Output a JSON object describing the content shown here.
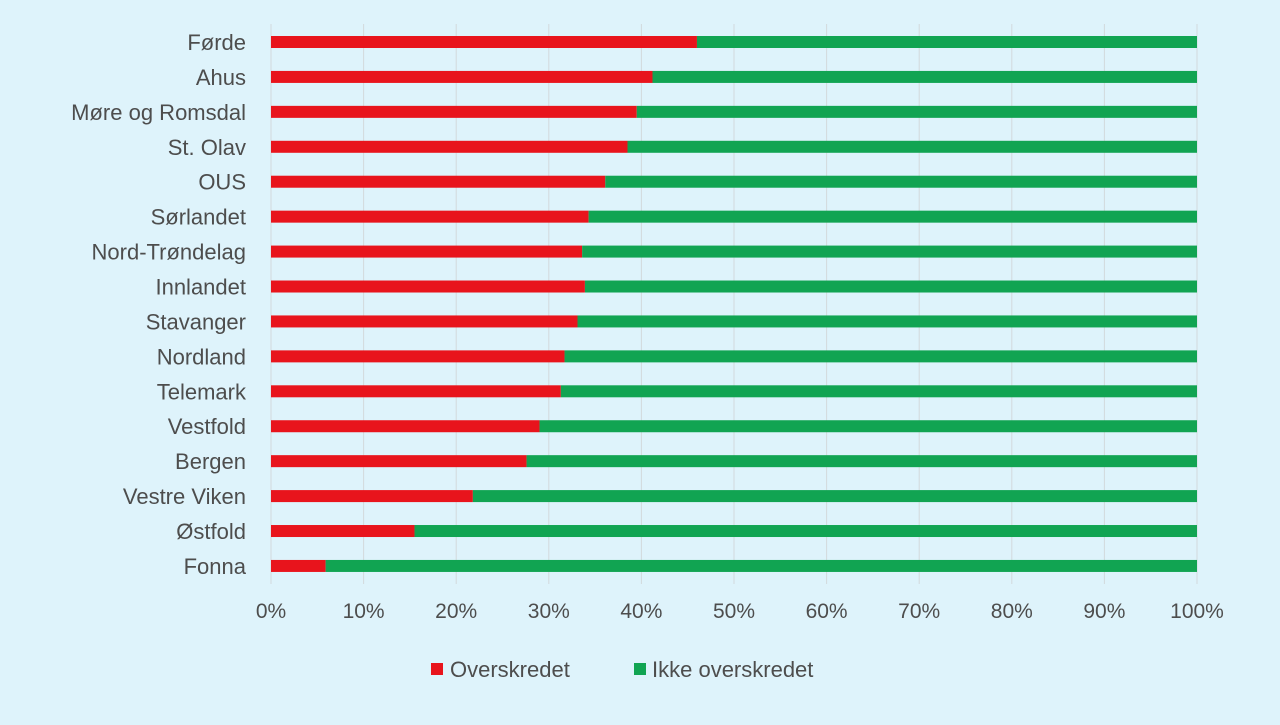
{
  "chart_data": {
    "type": "bar",
    "orientation": "horizontal",
    "stacked": "percent",
    "categories": [
      "Førde",
      "Ahus",
      "Møre og Romsdal",
      "St. Olav",
      "OUS",
      "Sørlandet",
      "Nord-Trøndelag",
      "Innlandet",
      "Stavanger",
      "Nordland",
      "Telemark",
      "Vestfold",
      "Bergen",
      "Vestre Viken",
      "Østfold",
      "Fonna"
    ],
    "series": [
      {
        "name": "Overskredet",
        "color": "#e8141c",
        "values": [
          46,
          41.2,
          39.5,
          38.5,
          36.1,
          34.3,
          33.6,
          33.9,
          33.1,
          31.7,
          31.3,
          29,
          27.6,
          21.8,
          15.5,
          5.9
        ]
      },
      {
        "name": "Ikke overskredet",
        "color": "#11a452",
        "values": [
          54,
          58.8,
          60.5,
          61.5,
          63.9,
          65.7,
          66.4,
          66.1,
          66.9,
          68.3,
          68.7,
          71,
          72.4,
          78.2,
          84.5,
          94.1
        ]
      }
    ],
    "xlim": [
      0,
      100
    ],
    "x_ticks": [
      "0%",
      "10%",
      "20%",
      "30%",
      "40%",
      "50%",
      "60%",
      "70%",
      "80%",
      "90%",
      "100%"
    ],
    "grid": "vertical",
    "legend": "bottom-center",
    "title": "",
    "xlabel": "",
    "ylabel": ""
  }
}
